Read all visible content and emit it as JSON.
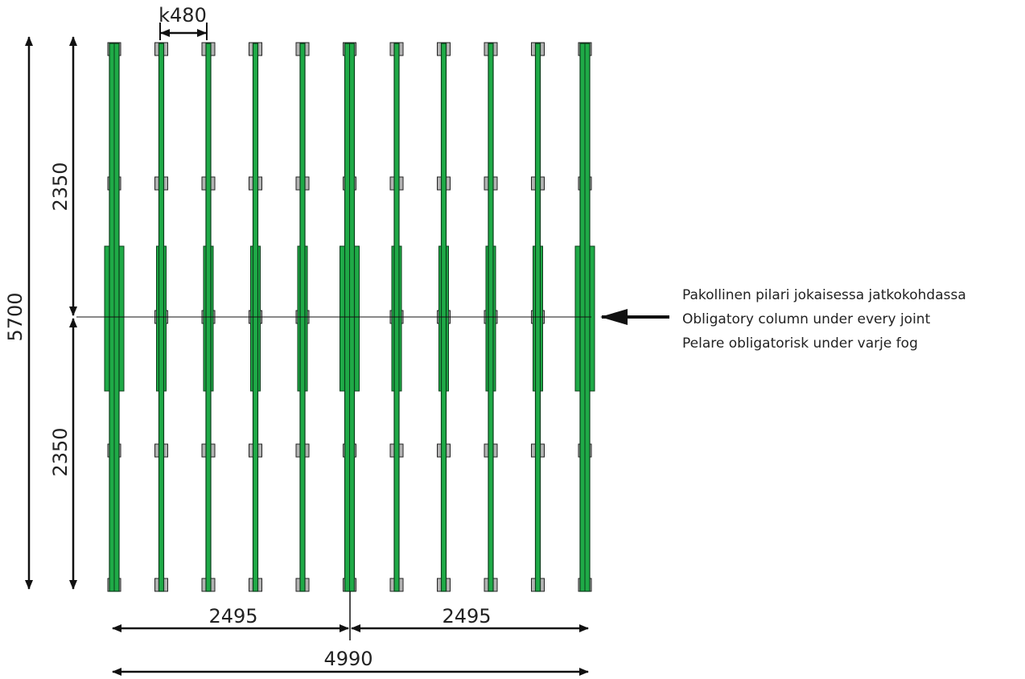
{
  "dimensions": {
    "spacing": "k480",
    "total_height": "5700",
    "upper_span": "2350",
    "lower_span": "2350",
    "left_half": "2495",
    "right_half": "2495",
    "total_width": "4990"
  },
  "note": {
    "line1": "Pakollinen pilari  jokaisessa jatkokohdassa",
    "line2": "Obligatory column under every joint",
    "line3": "Pelare obligatorisk under varje fog"
  },
  "structure": {
    "joist_count": 11,
    "support_rows": 5,
    "double_joists": [
      0,
      5,
      10
    ]
  },
  "colors": {
    "joist": "#1faa47",
    "joist_stroke": "#0b3d1a",
    "support": "#b3b3b3",
    "support_stroke": "#222222",
    "line": "#111111"
  }
}
